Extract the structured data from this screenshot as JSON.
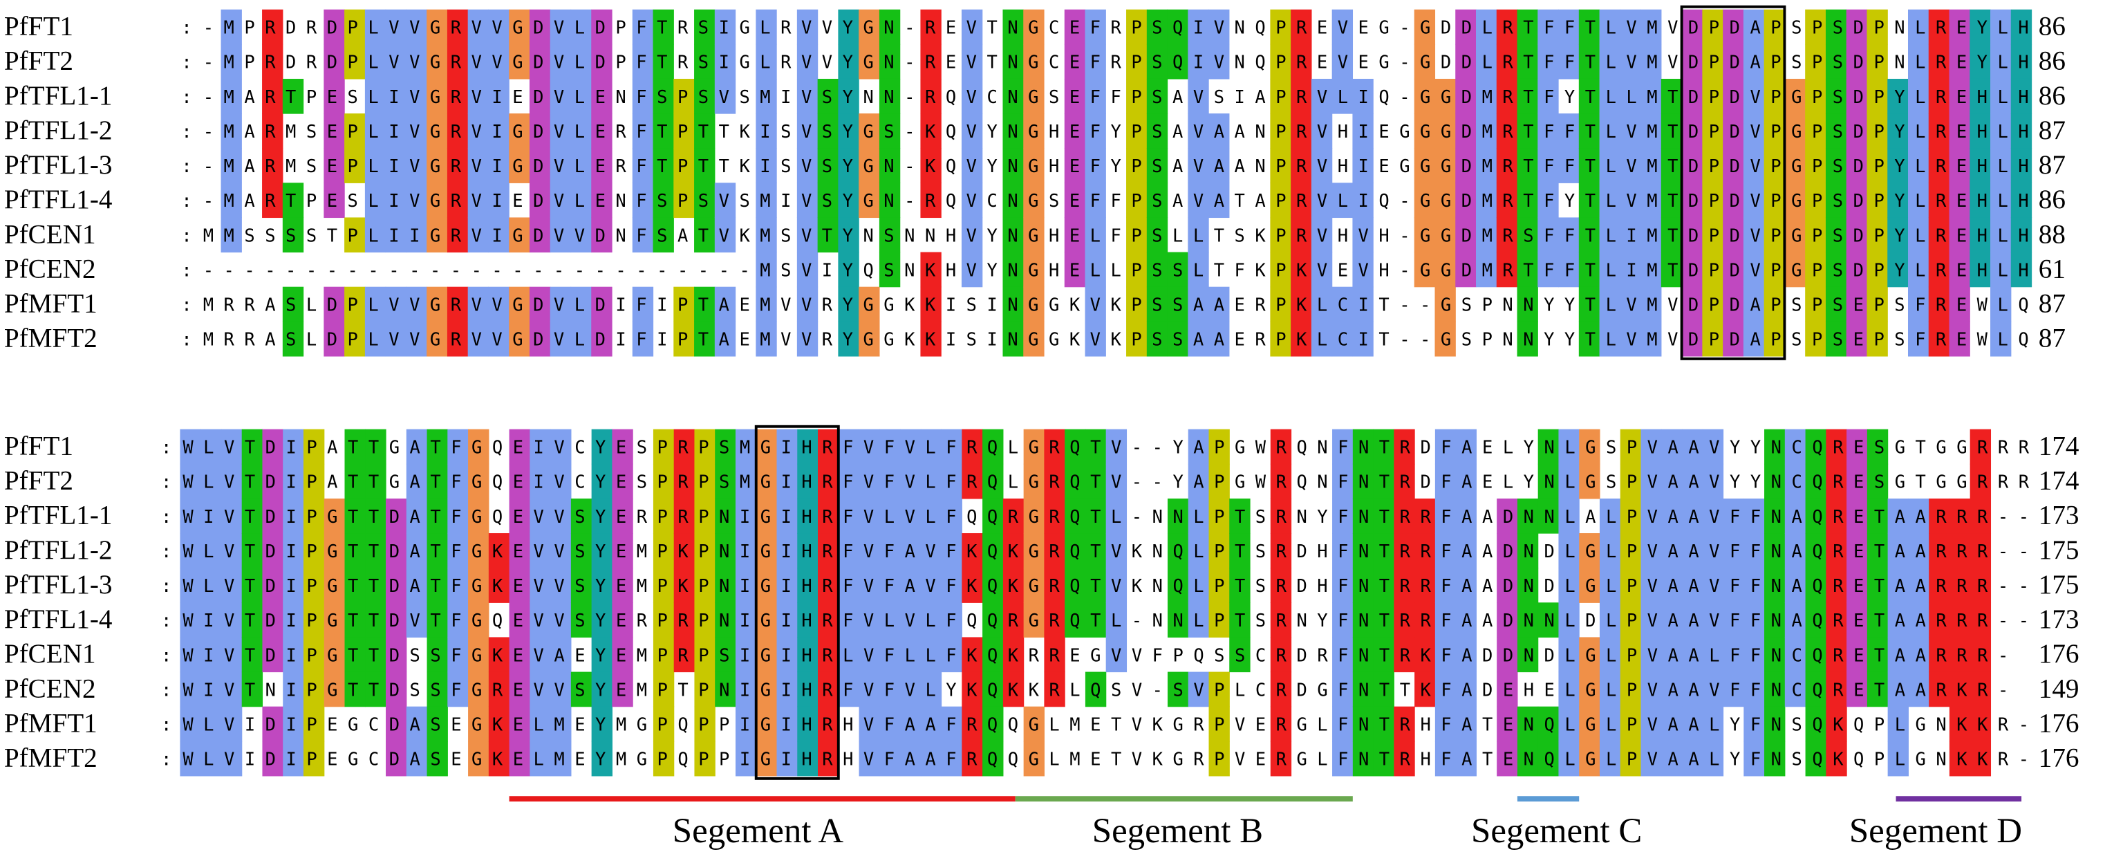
{
  "blocks": [
    {
      "rows": [
        {
          "name": "PfFT1",
          "sequence": "-MPRDRDPLVVGRVVGDVLDPFTRSIGLRVVYGN-REVTNGCEFRPSQIVNQPREVEG-GDDLRTFFTLVMVDPDAPSPSDPNLREYLH",
          "end": "86"
        },
        {
          "name": "PfFT2",
          "sequence": "-MPRDRDPLVVGRVVGDVLDPFTRSIGLRVVYGN-REVTNGCEFRPSQIVNQPREVEG-GDDLRTFFTLVMVDPDAPSPSDPNLREYLH",
          "end": "86"
        },
        {
          "name": "PfTFL1-1",
          "sequence": "-MARTPESLIVGRVIEDVLENFSPSVSMIVSYNN-RQVCNGSEFFPSAVSIAPRVLIQ-GGDMRTFYTLLMTDPDVPGPSDPYLREHLH",
          "end": "86"
        },
        {
          "name": "PfTFL1-2",
          "sequence": "-MARMSEPLIVGRVIGDVLERFTPTTKISVSYGS-KQVYNGHEFYPSAVAANPRVHIEGGGDMRTFFTLVMTDPDVPGPSDPYLREHLH",
          "end": "87"
        },
        {
          "name": "PfTFL1-3",
          "sequence": "-MARMSEPLIVGRVIGDVLERFTPTTKISVSYGN-KQVYNGHEFYPSAVAANPRVHIEGGGDMRTFFTLVMTDPDVPGPSDPYLREHLH",
          "end": "87"
        },
        {
          "name": "PfTFL1-4",
          "sequence": "-MARTPESLIVGRVIEDVLENFSPSVSMIVSYGN-RQVCNGSEFFPSAVATAPRVLIQ-GGDMRTFYTLVMTDPDVPGPSDPYLREHLH",
          "end": "86"
        },
        {
          "name": "PfCEN1",
          "sequence": "MMSSSSTPLIIGRVIGDVVDNFSATVKMSVTYNSNNHVYNGHELFPSLLTSKPRVHVH-GGDMRSFFTLIMTDPDVPGPSDPYLREHLH",
          "end": "88"
        },
        {
          "name": "PfCEN2",
          "sequence": "---------------------------MSVIYQSNKHVYNGHELLPSSLTFKPKVEVH-GGDMRTFFTLIMTDPDVPGPSDPYLREHLH",
          "end": "61"
        },
        {
          "name": "PfMFT1",
          "sequence": "MRRASLDPLVVGRVVGDVLDIFIPTAEMVVRYGGKKISINGGKVKPSSAAERPKLCIT--GSPNNYYTLVMVDPDAPSPSEPSFREWLQ",
          "end": "87"
        },
        {
          "name": "PfMFT2",
          "sequence": "MRRASLDPLVVGRVVGDVLDIFIPTAEMVVRYGGKKISINGGKVKPSSAAERPKLCIT--GSPNNYYTLVMVDPDAPSPSEPSFREWLQ",
          "end": "87"
        }
      ]
    },
    {
      "rows": [
        {
          "name": "PfFT1",
          "sequence": "WLVTDIPATTGATFGQEIVCYESPRPSMGIHRFVFVLFRQLGRQTV--YAPGWRQNFNTRDFAELYNLGSPVAAVYYNCQRESGTGGRRR",
          "end": "174"
        },
        {
          "name": "PfFT2",
          "sequence": "WLVTDIPATTGATFGQEIVCYESPRPSMGIHRFVFVLFRQLGRQTV--YAPGWRQNFNTRDFAELYNLGSPVAAVYYNCQRESGTGGRRR",
          "end": "174"
        },
        {
          "name": "PfTFL1-1",
          "sequence": "WIVTDIPGTTDATFGQEVVSYERPRPNIGIHRFVLVLFQQRGRQTL-NNLPTSRNYFNTRRFAADNNLALPVAAVFFNAQRETAARRR--",
          "end": "173"
        },
        {
          "name": "PfTFL1-2",
          "sequence": "WLVTDIPGTTDATFGKEVVSYEMPKPNIGIHRFVFAVFKQKGRQTVKNQLPTSRDHFNTRRFAADNDLGLPVAAVFFNAQRETAARRR--",
          "end": "175"
        },
        {
          "name": "PfTFL1-3",
          "sequence": "WLVTDIPGTTDATFGKEVVSYEMPKPNIGIHRFVFAVFKQKGRQTVKNQLPTSRDHFNTRRFAADNDLGLPVAAVFFNAQRETAARRR--",
          "end": "175"
        },
        {
          "name": "PfTFL1-4",
          "sequence": "WIVTDIPGTTDVTFGQEVVSYERPRPNIGIHRFVLVLFQQRGRQTL-NNLPTSRNYFNTRRFAADNNLDLPVAAVFFNAQRETAARRR--",
          "end": "173"
        },
        {
          "name": "PfCEN1",
          "sequence": "WIVTDIPGTTDSSFGKEVAEYEMPRPSIGIHRLVFLLFKQKRREGVVFPQSSCRDRFNTRKFADDNDLGLPVAALFFNCQRETAARRR-",
          "end": "176"
        },
        {
          "name": "PfCEN2",
          "sequence": "WIVTNIPGTTDSSFGREVVSYEMPTPNIGIHRFVFVLYKQKKRLQSV-SVPLCRDGFNTTKFADEHELGLPVAAVFFNCQRETAARKR-",
          "end": "149"
        },
        {
          "name": "PfMFT1",
          "sequence": "WLVIDIPEGCDASEGKELMEYMGPQPPIGIHRHVFAAFRQQGLMETVKGRPVERGLFNTRHFATENQLGLPVAALYFNSQKQPLGNKKR-",
          "end": "176"
        },
        {
          "name": "PfMFT2",
          "sequence": "WLVIDIPEGCDASEGKELMEYMGPQPPIGIHRHVFAAFRQQGLMETVKGRPVERGLFNTRHFATENQLGLPVAALYFNSQKQPLGNKKR-",
          "end": "176"
        }
      ]
    }
  ],
  "segments": [
    "Segement A",
    "Segement B",
    "Segement C",
    "Segement D"
  ]
}
